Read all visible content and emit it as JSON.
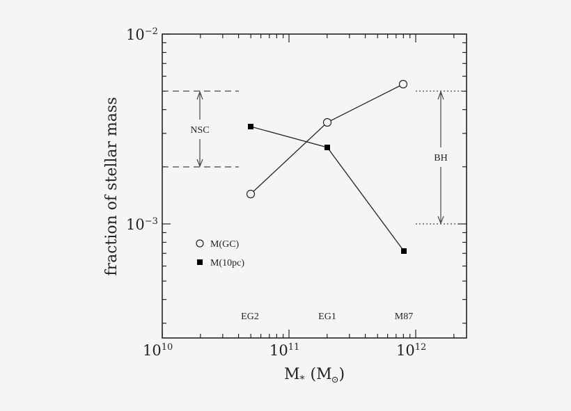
{
  "chart_data": {
    "type": "line",
    "title": "",
    "xlabel": "M* (M⊙)",
    "ylabel": "fraction of stellar mass",
    "xscale": "log",
    "yscale": "log",
    "xlim": [
      10000000000.0,
      2500000000000.0
    ],
    "ylim": [
      0.00025,
      0.01
    ],
    "x_ticks": [
      "10^10",
      "10^11",
      "10^12"
    ],
    "y_ticks": [
      "10^-3",
      "10^-2"
    ],
    "grid": false,
    "categories": [
      "EG2",
      "EG1",
      "M87"
    ],
    "x": [
      50000000000.0,
      200000000000.0,
      800000000000.0
    ],
    "series": [
      {
        "name": "M(GC)",
        "marker": "open-circle",
        "values": [
          0.00144,
          0.00343,
          0.00544
        ]
      },
      {
        "name": "M(10pc)",
        "marker": "filled-square",
        "values": [
          0.00326,
          0.00253,
          0.00072
        ]
      }
    ],
    "annotations": [
      {
        "label": "NSC",
        "style": "dashed",
        "range": [
          0.002,
          0.005
        ],
        "x_span": [
          10000000000.0,
          40000000000.0
        ]
      },
      {
        "label": "BH",
        "style": "dotted",
        "range": [
          0.001,
          0.005
        ],
        "x_span": [
          1000000000000.0,
          2500000000000.0
        ]
      }
    ],
    "legend_position": "lower-left"
  },
  "labels": {
    "xlabel_main": "M",
    "xlabel_sub": "*",
    "xlabel_unit_open": "(M",
    "xlabel_unit_close": ")",
    "ylabel": "fraction of stellar mass",
    "xtick_base": "10",
    "xtick_exp": [
      "10",
      "11",
      "12"
    ],
    "ytick_base": "10",
    "ytick_exp": [
      "−3",
      "−2"
    ],
    "galaxies": [
      "EG2",
      "EG1",
      "M87"
    ],
    "nsc": "NSC",
    "bh": "BH",
    "legend": [
      "M(GC)",
      "M(10pc)"
    ]
  }
}
